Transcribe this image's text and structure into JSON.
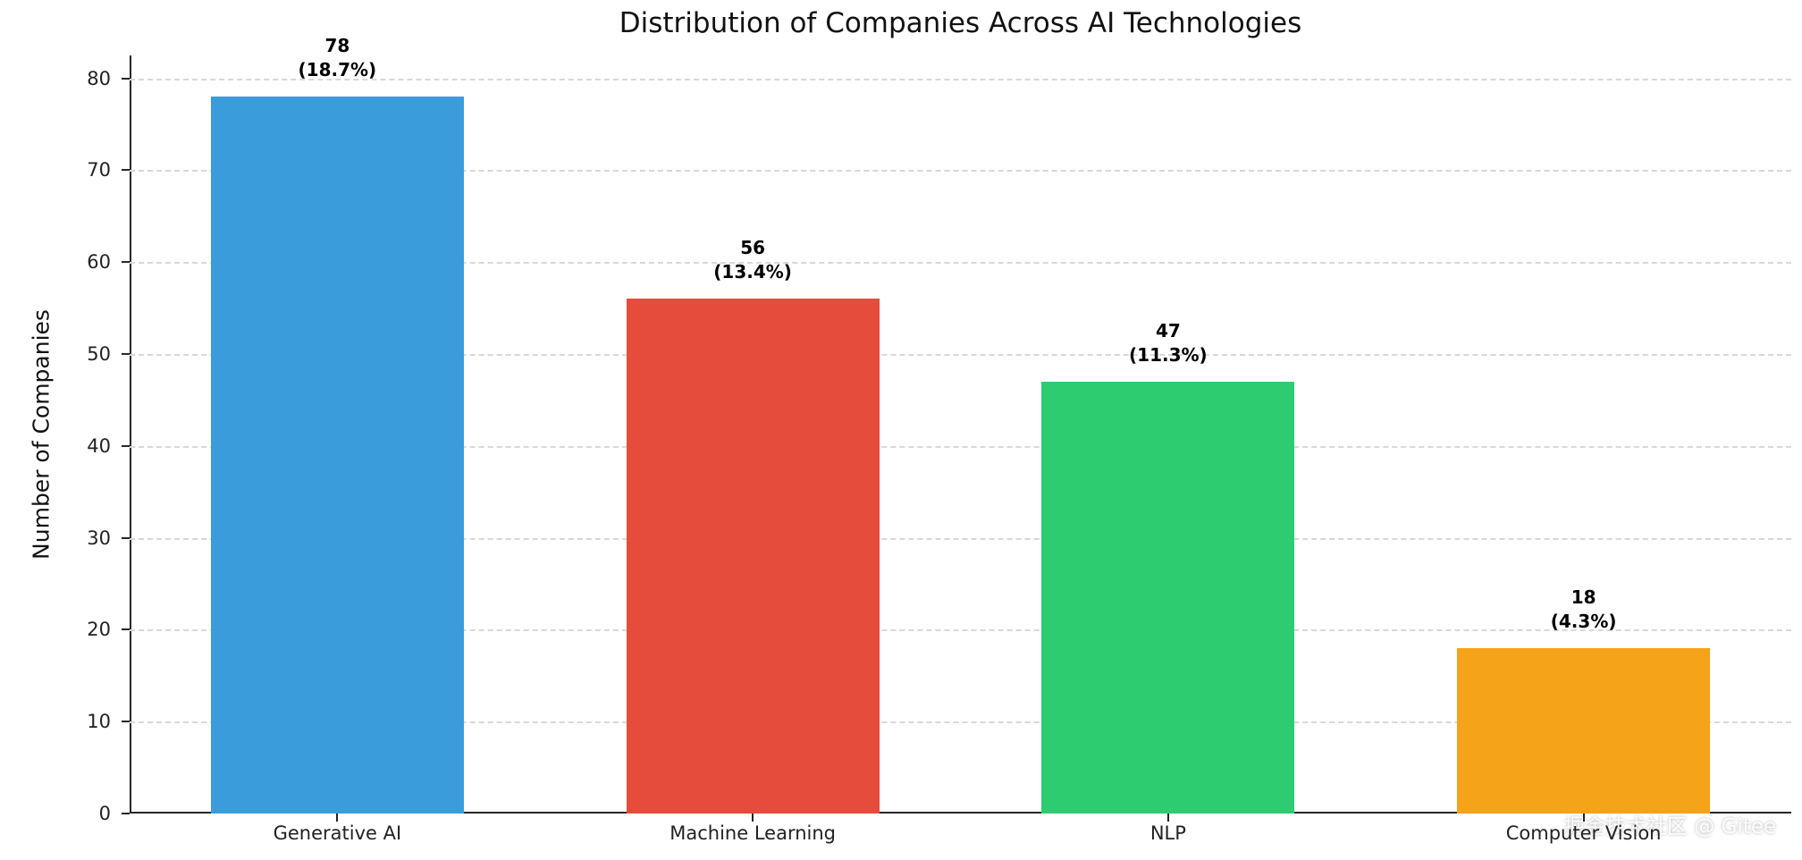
{
  "chart_data": {
    "type": "bar",
    "title": "Distribution of Companies Across AI Technologies",
    "xlabel": "",
    "ylabel": "Number of Companies",
    "categories": [
      "Generative AI",
      "Machine Learning",
      "NLP",
      "Computer Vision"
    ],
    "values": [
      78,
      56,
      47,
      18
    ],
    "percent_labels": [
      "(18.7%)",
      "(13.4%)",
      "(11.3%)",
      "(4.3%)"
    ],
    "bar_colors": [
      "#3b9cdc",
      "#e64c3c",
      "#2ecc71",
      "#f5a318"
    ],
    "ylim": [
      0,
      82.5
    ],
    "yticks": [
      0,
      10,
      20,
      30,
      40,
      50,
      60,
      70,
      80
    ],
    "grid": "horizontal-dashed",
    "legend": "none"
  },
  "watermark": {
    "text": "掘金技术社区 @ Gitee"
  }
}
